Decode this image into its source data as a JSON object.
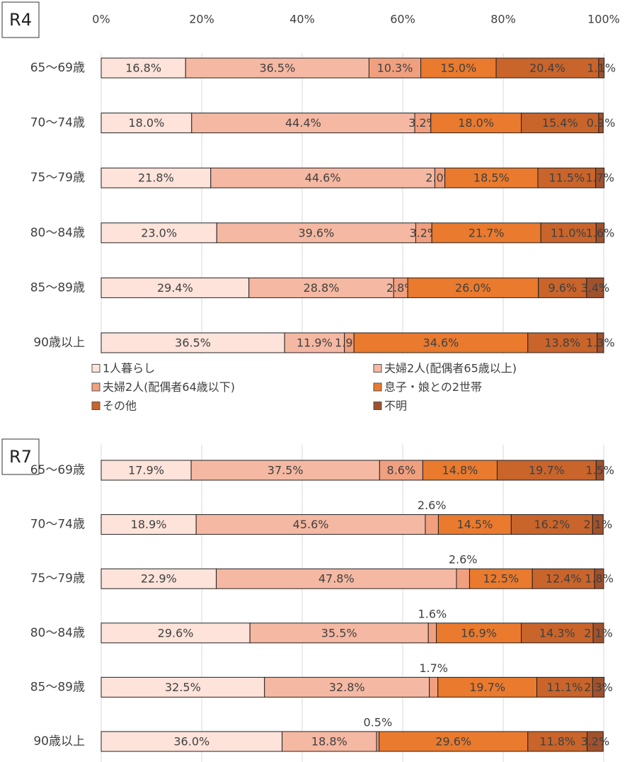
{
  "chart_data": [
    {
      "type": "stacked_barh",
      "title": "R4",
      "categories": [
        "65～69歳",
        "70～74歳",
        "75～79歳",
        "80～84歳",
        "85～89歳",
        "90歳以上"
      ],
      "xlim": [
        0,
        100
      ],
      "xticks": [
        {
          "value": 0,
          "label": "0%"
        },
        {
          "value": 20,
          "label": "20%"
        },
        {
          "value": 40,
          "label": "40%"
        },
        {
          "value": 60,
          "label": "60%"
        },
        {
          "value": 80,
          "label": "80%"
        },
        {
          "value": 100,
          "label": "100%"
        }
      ],
      "show_xtick_labels": true,
      "grid": true,
      "legend": true,
      "small_labels_above": false,
      "series": [
        {
          "name": "1人暮らし",
          "color": "#fde3da",
          "values": [
            16.8,
            18.0,
            21.8,
            23.0,
            29.4,
            36.5
          ],
          "value_labels": [
            "16.8%",
            "18.0%",
            "21.8%",
            "23.0%",
            "29.4%",
            "36.5%"
          ]
        },
        {
          "name": "夫婦2人(配偶者65歳以上)",
          "color": "#f5b8a2",
          "values": [
            36.5,
            44.4,
            44.6,
            39.6,
            28.8,
            11.9
          ],
          "value_labels": [
            "36.5%",
            "44.4%",
            "44.6%",
            "39.6%",
            "28.8%",
            "11.9%"
          ]
        },
        {
          "name": "夫婦2人(配偶者64歳以下)",
          "color": "#f0a07f",
          "values": [
            10.3,
            3.2,
            2.0,
            3.2,
            2.8,
            1.9
          ],
          "value_labels": [
            "10.3%",
            "3.2%",
            "2.0%",
            "3.2%",
            "2.8%",
            "1.9%"
          ]
        },
        {
          "name": "息子・娘との2世帯",
          "color": "#e97a2e",
          "values": [
            15.0,
            18.0,
            18.5,
            21.7,
            26.0,
            34.6
          ],
          "value_labels": [
            "15.0%",
            "18.0%",
            "18.5%",
            "21.7%",
            "26.0%",
            "34.6%"
          ]
        },
        {
          "name": "その他",
          "color": "#c9642b",
          "values": [
            20.4,
            15.4,
            11.5,
            11.0,
            9.6,
            13.8
          ],
          "value_labels": [
            "20.4%",
            "15.4%",
            "11.5%",
            "11.0%",
            "9.6%",
            "13.8%"
          ]
        },
        {
          "name": "不明",
          "color": "#a0522d",
          "values": [
            1.1,
            0.9,
            1.7,
            1.6,
            3.4,
            1.3
          ],
          "value_labels": [
            "1.1%",
            "0.9%",
            "1.7%",
            "1.6%",
            "3.4%",
            "1.3%"
          ]
        }
      ]
    },
    {
      "type": "stacked_barh",
      "title": "R7",
      "categories": [
        "65～69歳",
        "70～74歳",
        "75～79歳",
        "80～84歳",
        "85～89歳",
        "90歳以上"
      ],
      "xlim": [
        0,
        100
      ],
      "xticks": [
        0,
        20,
        40,
        60,
        80,
        100
      ],
      "show_xtick_labels": false,
      "grid": true,
      "legend": false,
      "small_labels_above": true,
      "series": [
        {
          "color": "#fde3da",
          "values": [
            17.9,
            18.9,
            22.9,
            29.6,
            32.5,
            36.0
          ],
          "value_labels": [
            "17.9%",
            "18.9%",
            "22.9%",
            "29.6%",
            "32.5%",
            "36.0%"
          ]
        },
        {
          "color": "#f5b8a2",
          "values": [
            37.5,
            45.6,
            47.8,
            35.5,
            32.8,
            18.8
          ],
          "value_labels": [
            "37.5%",
            "45.6%",
            "47.8%",
            "35.5%",
            "32.8%",
            "18.8%"
          ]
        },
        {
          "color": "#f0a07f",
          "values": [
            8.6,
            2.6,
            2.6,
            1.6,
            1.7,
            0.5
          ],
          "value_labels": [
            "8.6%",
            "2.6%",
            "2.6%",
            "1.6%",
            "1.7%",
            "0.5%"
          ]
        },
        {
          "color": "#e97a2e",
          "values": [
            14.8,
            14.5,
            12.5,
            16.9,
            19.7,
            29.6
          ],
          "value_labels": [
            "14.8%",
            "14.5%",
            "12.5%",
            "16.9%",
            "19.7%",
            "29.6%"
          ]
        },
        {
          "color": "#c9642b",
          "values": [
            19.7,
            16.2,
            12.4,
            14.3,
            11.1,
            11.8
          ],
          "value_labels": [
            "19.7%",
            "16.2%",
            "12.4%",
            "14.3%",
            "11.1%",
            "11.8%"
          ]
        },
        {
          "color": "#a0522d",
          "values": [
            1.5,
            2.1,
            1.8,
            2.1,
            2.3,
            3.2
          ],
          "value_labels": [
            "1.5%",
            "2.1%",
            "1.8%",
            "2.1%",
            "2.3%",
            "3.2%"
          ]
        }
      ]
    }
  ]
}
